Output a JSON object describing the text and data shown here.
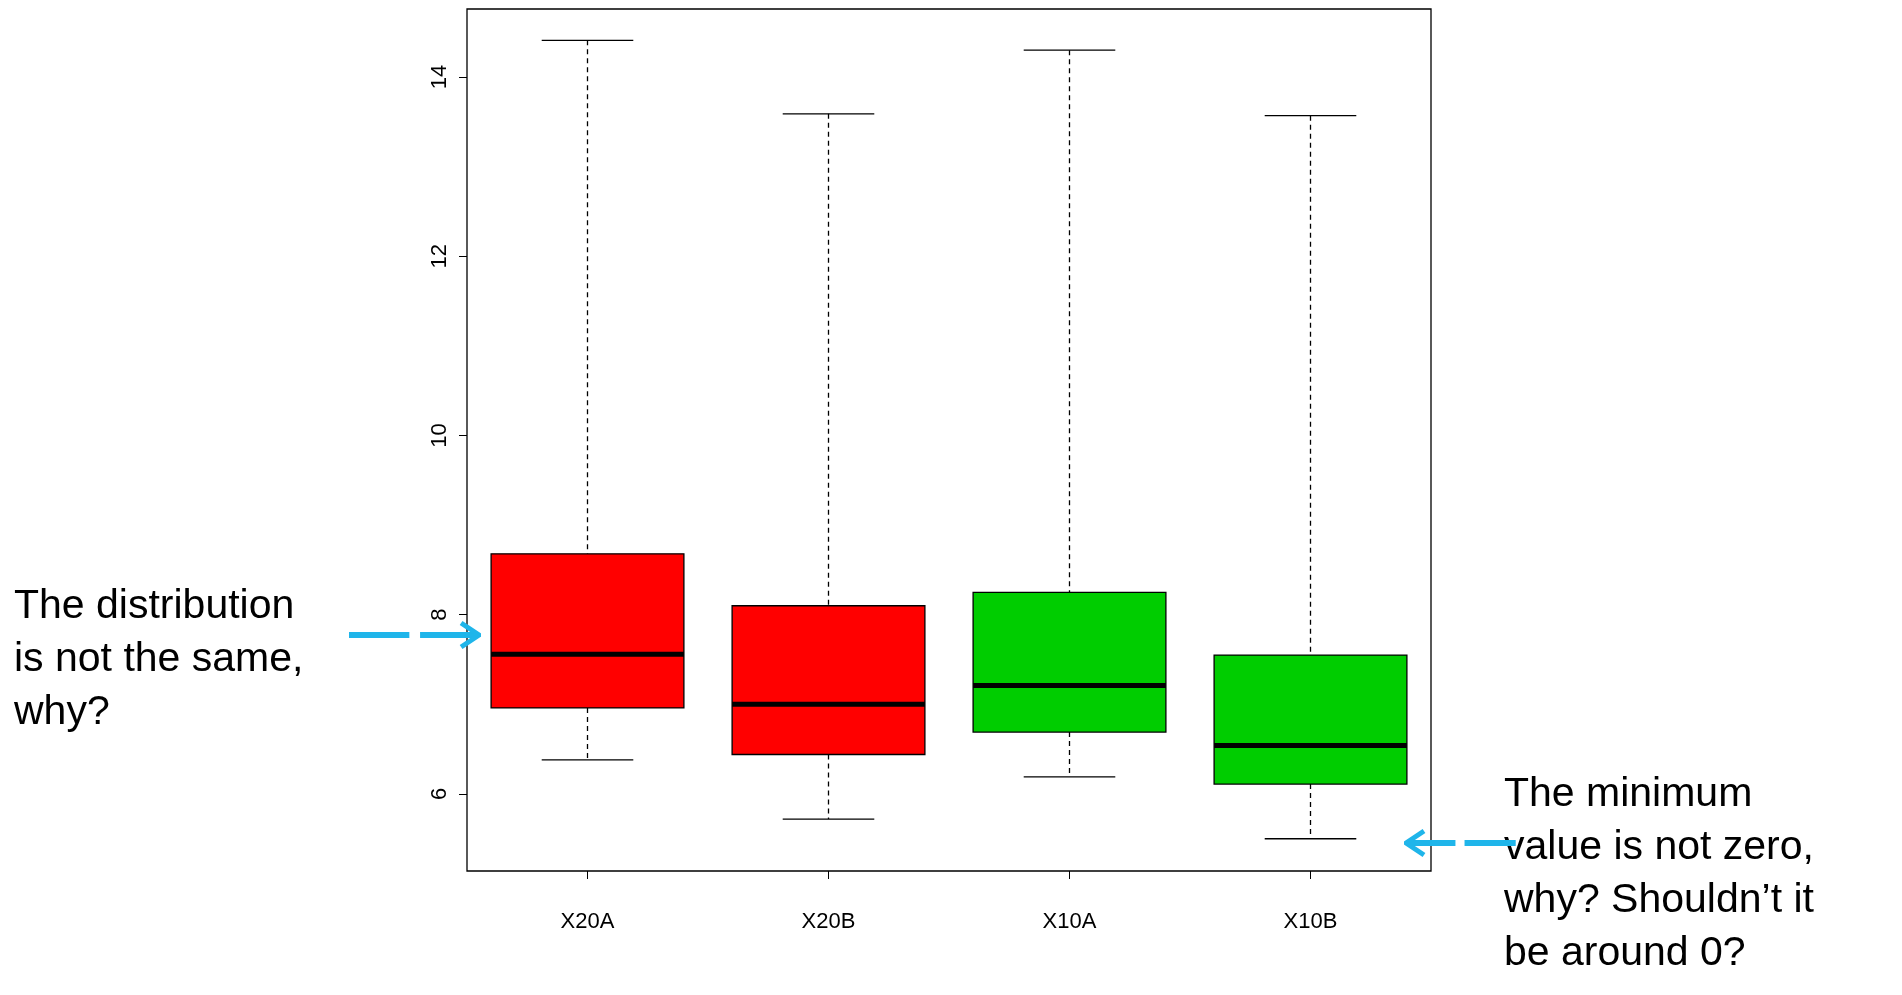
{
  "chart_data": {
    "type": "box",
    "categories": [
      "X20A",
      "X20B",
      "X10A",
      "X10B"
    ],
    "boxes": [
      {
        "low": 6.38,
        "q1": 6.96,
        "median": 7.56,
        "q3": 8.68,
        "high": 14.41
      },
      {
        "low": 5.72,
        "q1": 6.44,
        "median": 7.0,
        "q3": 8.1,
        "high": 13.59
      },
      {
        "low": 6.19,
        "q1": 6.69,
        "median": 7.21,
        "q3": 8.25,
        "high": 14.3
      },
      {
        "low": 5.5,
        "q1": 6.11,
        "median": 6.54,
        "q3": 7.55,
        "high": 13.57
      }
    ],
    "colors": [
      "#ff0000",
      "#ff0000",
      "#00cd00",
      "#00cd00"
    ],
    "ylim": [
      5.14,
      14.76
    ],
    "yticks": [
      6,
      8,
      10,
      12,
      14
    ],
    "annotations": [
      "The distribution\nis not the same,\nwhy?",
      "The minimum\nvalue is not zero,\nwhy? Shouldn’t it\nbe around 0?"
    ]
  }
}
